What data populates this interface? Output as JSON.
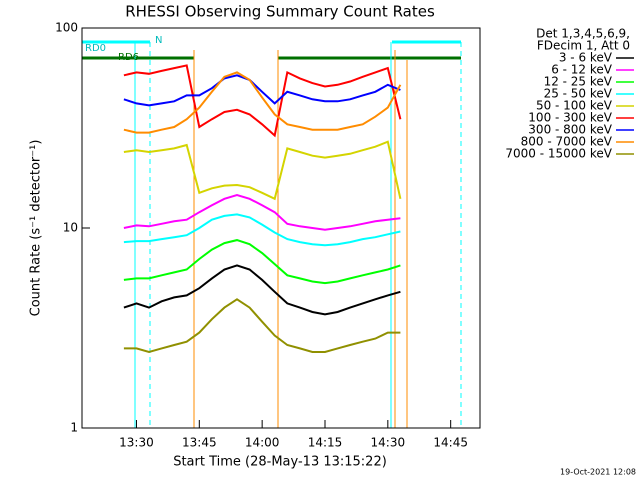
{
  "chart_data": {
    "type": "line",
    "title": "RHESSI Observing Summary Count Rates",
    "x_label": "Start Time (28-May-13 13:15:22)",
    "y_label": "Count Rate (s⁻¹ detector⁻¹)",
    "footer": "19-Oct-2021 12:08",
    "legend_header": [
      "Det 1,3,4,5,6,9,",
      "FDecim 1, Att 0"
    ],
    "annotations": [
      "RD0",
      "RD6",
      "N"
    ],
    "ylog": true,
    "xlim": [
      "13:17",
      "14:52"
    ],
    "xticks": [
      "13:30",
      "13:45",
      "14:00",
      "14:15",
      "14:30",
      "14:45"
    ],
    "ylim": [
      1,
      100
    ],
    "yticks": [
      1,
      10,
      100
    ],
    "x": [
      "13:27",
      "13:30",
      "13:33",
      "13:36",
      "13:39",
      "13:42",
      "13:45",
      "13:48",
      "13:51",
      "13:54",
      "13:57",
      "14:00",
      "14:03",
      "14:06",
      "14:09",
      "14:12",
      "14:15",
      "14:18",
      "14:21",
      "14:24",
      "14:27",
      "14:30",
      "14:33"
    ],
    "series": [
      {
        "name": "3 - 6 keV",
        "color": "#000000",
        "values": [
          4,
          4.2,
          4,
          4.3,
          4.5,
          4.6,
          5,
          5.6,
          6.2,
          6.5,
          6.2,
          5.5,
          4.8,
          4.2,
          4,
          3.8,
          3.7,
          3.8,
          4,
          4.2,
          4.4,
          4.6,
          4.8
        ]
      },
      {
        "name": "6 - 12 keV",
        "color": "#ff00ff",
        "values": [
          10,
          10.3,
          10.2,
          10.5,
          10.8,
          11,
          12,
          13,
          14,
          14.6,
          14,
          13,
          12,
          10.5,
          10.2,
          10,
          9.8,
          10,
          10.2,
          10.5,
          10.8,
          11,
          11.2
        ]
      },
      {
        "name": "12 - 25 keV",
        "color": "#00ff00",
        "values": [
          5.5,
          5.6,
          5.6,
          5.8,
          6,
          6.2,
          7,
          7.8,
          8.4,
          8.7,
          8.3,
          7.5,
          6.6,
          5.8,
          5.6,
          5.4,
          5.3,
          5.4,
          5.6,
          5.8,
          6,
          6.2,
          6.5
        ]
      },
      {
        "name": "25 - 50 keV",
        "color": "#00ffff",
        "values": [
          8.5,
          8.6,
          8.6,
          8.8,
          9,
          9.2,
          10,
          11,
          11.5,
          11.7,
          11.3,
          10.4,
          9.5,
          8.8,
          8.5,
          8.3,
          8.2,
          8.3,
          8.5,
          8.8,
          9,
          9.3,
          9.6
        ]
      },
      {
        "name": "50 - 100 keV",
        "color": "#d4d400",
        "values": [
          24,
          24.5,
          24,
          24.5,
          25,
          26,
          15,
          15.8,
          16.3,
          16.4,
          16,
          15,
          14,
          25,
          24,
          23,
          22.5,
          23,
          23.5,
          24.5,
          25.5,
          27,
          14
        ]
      },
      {
        "name": "100 - 300 keV",
        "color": "#ff0000",
        "values": [
          58,
          60,
          59,
          61,
          63,
          65,
          32,
          35,
          38,
          39,
          37,
          33,
          29,
          60,
          56,
          53,
          51,
          52,
          54,
          57,
          60,
          63,
          35
        ]
      },
      {
        "name": "300 - 800 keV",
        "color": "#0000ff",
        "values": [
          44,
          42,
          41,
          42,
          43,
          46,
          46,
          50,
          56,
          58,
          55,
          48,
          42,
          48,
          46,
          44,
          43,
          43,
          44,
          46,
          48,
          52,
          49
        ]
      },
      {
        "name": "800 - 7000 keV",
        "color": "#ff8c00",
        "values": [
          31,
          30,
          30,
          31,
          32,
          35,
          40,
          48,
          57,
          60,
          55,
          45,
          37,
          33,
          32,
          31,
          31,
          31,
          32,
          33,
          36,
          40,
          52
        ]
      },
      {
        "name": "7000 - 15000 keV",
        "color": "#909000",
        "values": [
          2.5,
          2.5,
          2.4,
          2.5,
          2.6,
          2.7,
          3,
          3.5,
          4,
          4.4,
          4,
          3.4,
          2.9,
          2.6,
          2.5,
          2.4,
          2.4,
          2.5,
          2.6,
          2.7,
          2.8,
          3,
          3
        ]
      }
    ]
  }
}
